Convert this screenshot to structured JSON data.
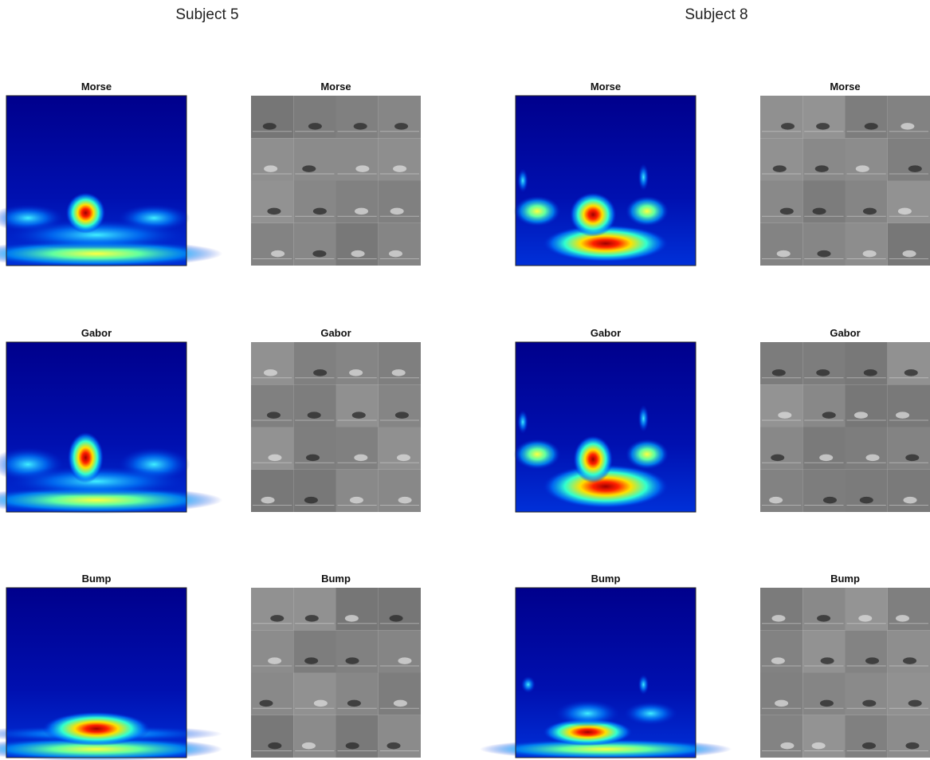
{
  "subjects": [
    {
      "title": "Subject 5",
      "panels": [
        [
          "Morse",
          "Morse"
        ],
        [
          "Gabor",
          "Gabor"
        ],
        [
          "Bump",
          "Bump"
        ]
      ]
    },
    {
      "title": "Subject 8",
      "panels": [
        [
          "Morse",
          "Morse"
        ],
        [
          "Gabor",
          "Gabor"
        ],
        [
          "Bump",
          "Bump"
        ]
      ]
    }
  ]
}
